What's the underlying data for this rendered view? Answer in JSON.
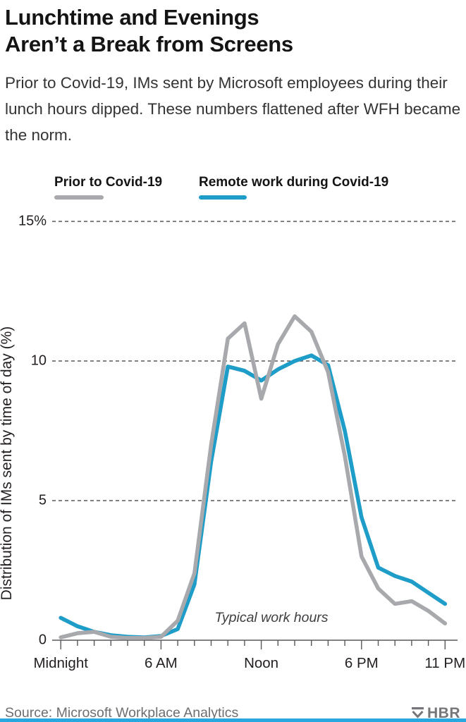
{
  "header": {
    "title_line1": "Lunchtime and Evenings",
    "title_line2": "Aren’t a Break from Screens",
    "subtitle": "Prior to Covid-19, IMs sent by Microsoft employees during their lunch hours dipped. These numbers flattened after WFH became the norm."
  },
  "legend": [
    {
      "label": "Prior to Covid-19",
      "color": "#a7a9ac"
    },
    {
      "label": "Remote work during Covid-19",
      "color": "#1e9dc8"
    }
  ],
  "chart_data": {
    "type": "line",
    "title": "Lunchtime and Evenings Aren’t a Break from Screens",
    "xlabel": "",
    "ylabel": "Distribution of IMs sent by time of day (%)",
    "x_hours": [
      0,
      1,
      2,
      3,
      4,
      5,
      6,
      7,
      8,
      9,
      10,
      11,
      12,
      13,
      14,
      15,
      16,
      17,
      18,
      19,
      20,
      21,
      22,
      23
    ],
    "series": [
      {
        "name": "Prior to Covid-19",
        "color": "#a7a9ac",
        "values": [
          0.1,
          0.25,
          0.3,
          0.12,
          0.08,
          0.08,
          0.12,
          0.7,
          2.4,
          7.0,
          10.8,
          11.35,
          8.65,
          10.6,
          11.6,
          11.05,
          9.6,
          6.6,
          3.0,
          1.85,
          1.3,
          1.4,
          1.05,
          0.6
        ]
      },
      {
        "name": "Remote work during Covid-19",
        "color": "#1e9dc8",
        "values": [
          0.8,
          0.5,
          0.3,
          0.18,
          0.12,
          0.1,
          0.15,
          0.4,
          2.0,
          6.4,
          9.8,
          9.65,
          9.3,
          9.7,
          10.0,
          10.2,
          9.85,
          7.5,
          4.4,
          2.6,
          2.3,
          2.1,
          1.7,
          1.3
        ]
      }
    ],
    "ylim": [
      0,
      15.8
    ],
    "yticks": [
      {
        "value": 15,
        "label": "15%"
      },
      {
        "value": 10,
        "label": "10"
      },
      {
        "value": 5,
        "label": "5"
      },
      {
        "value": 0,
        "label": "0"
      }
    ],
    "xticks_major": [
      {
        "hour": 0,
        "label": "Midnight"
      },
      {
        "hour": 6,
        "label": "6 AM"
      },
      {
        "hour": 12,
        "label": "Noon"
      },
      {
        "hour": 18,
        "label": "6 PM"
      },
      {
        "hour": 23,
        "label": "11 PM"
      }
    ],
    "xticks_minor_every_hour": true,
    "grid": "horizontal-dashed",
    "legend_position": "top-left",
    "annotation": "Typical work hours"
  },
  "footer": {
    "source": "Source: Microsoft Workplace Analytics",
    "brand": "HBR"
  },
  "colors": {
    "prior_line": "#a7a9ac",
    "remote_line": "#1e9dc8",
    "grid": "#58595b",
    "axis": "#58595b",
    "bottom_bar": "#29a8df",
    "footer_text": "#6d6e71"
  }
}
